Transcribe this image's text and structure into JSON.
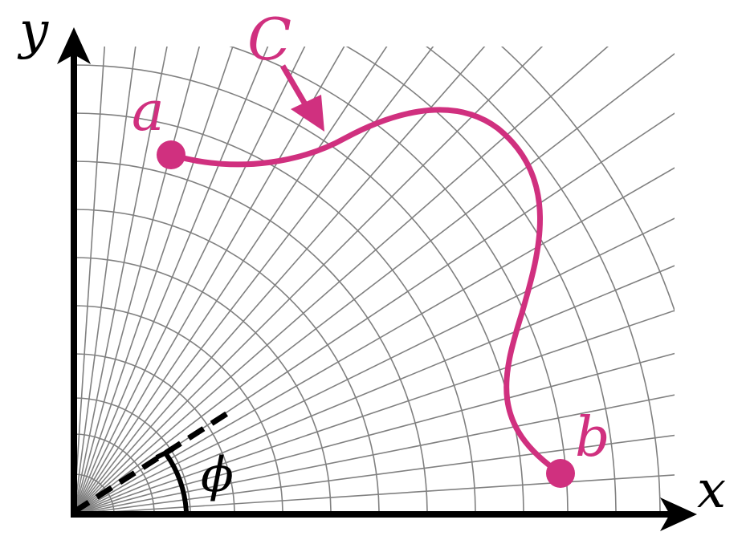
{
  "labels": {
    "x_axis": "x",
    "y_axis": "y",
    "curve": "C",
    "start_point": "a",
    "end_point": "b",
    "angle": "ϕ"
  },
  "colors": {
    "curve": "#d0307f",
    "axes": "#000000",
    "grid": "#808080",
    "background": "#ffffff"
  }
}
